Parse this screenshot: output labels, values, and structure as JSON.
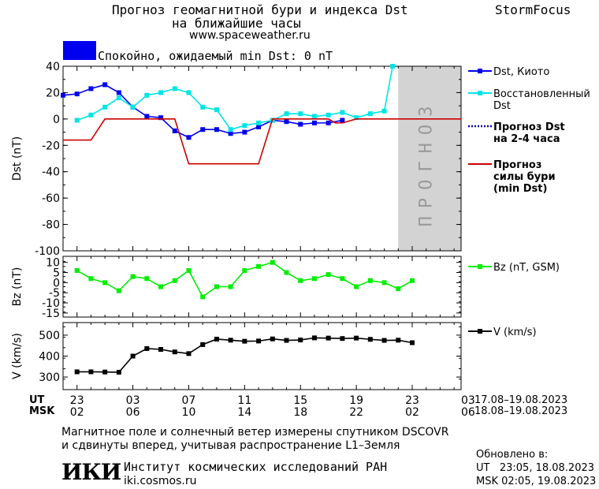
{
  "header": {
    "title_line1": "Прогноз геомагнитной бури и индекса Dst",
    "title_line2": "на ближайшие часы",
    "url": "www.spaceweather.ru",
    "brand": "StormFocus"
  },
  "status": {
    "text": "Спокойно, ожидаемый min Dst: 0 nT",
    "color": "#0000ee"
  },
  "forecast_label": "ПРОГНОЗ",
  "time_axis": {
    "ut_label": "UT",
    "msk_label": "MSK",
    "ut_ticks": [
      "23",
      "03",
      "07",
      "11",
      "15",
      "19",
      "23",
      "03"
    ],
    "msk_ticks": [
      "02",
      "06",
      "10",
      "14",
      "18",
      "22",
      "02",
      "06"
    ],
    "ut_range": "17.08–19.08.2023",
    "msk_range": "18.08–19.08.2023"
  },
  "footer": {
    "note_line1": "Магнитное поле и солнечный ветер измерены спутником DSCOVR",
    "note_line2": "и сдвинуты вперед, учитывая распространение L1–Земля",
    "institute": "Институт космических исследований РАН",
    "institute_url": "iki.cosmos.ru",
    "logo": "ИКИ",
    "updated_label": "Обновлено в:",
    "updated_ut": "UT   23:05, 18.08.2023",
    "updated_msk": "MSK 02:05, 19.08.2023"
  },
  "chart_data": [
    {
      "type": "line",
      "ylabel": "Dst (nT)",
      "ylim": [
        -100,
        40
      ],
      "yticks": [
        40,
        20,
        0,
        -20,
        -40,
        -60,
        -80,
        -100
      ],
      "xlim_hours": [
        -1,
        27.5
      ],
      "forecast_start_hour": 23,
      "series": [
        {
          "name": "Dst, Киото",
          "color": "#0000ee",
          "marker": "square",
          "x": [
            -1,
            0,
            1,
            2,
            3,
            4,
            5,
            6,
            7,
            8,
            9,
            10,
            11,
            12,
            13,
            14,
            15,
            16,
            17,
            18,
            19
          ],
          "values": [
            18,
            19,
            23,
            26,
            20,
            9,
            2,
            1,
            -9,
            -14,
            -8,
            -8,
            -11,
            -10,
            -6,
            -1,
            -2,
            -4,
            -3,
            -3,
            -1
          ]
        },
        {
          "name": "Восстановленный Dst",
          "color": "#00e5e5",
          "marker": "square",
          "x": [
            0,
            1,
            2,
            3,
            4,
            5,
            6,
            7,
            8,
            9,
            10,
            11,
            12,
            13,
            14,
            15,
            16,
            17,
            18,
            19,
            20,
            21,
            22,
            22.6
          ],
          "values": [
            -1,
            3,
            9,
            16,
            9,
            18,
            20,
            23,
            20,
            9,
            7,
            -8,
            -5,
            -3,
            -1,
            4,
            4,
            2,
            3,
            5,
            1,
            4,
            6,
            40
          ]
        },
        {
          "name": "Прогноз Dst на 2-4 часа",
          "color": "#0000aa",
          "marker": "none",
          "x": [],
          "values": []
        },
        {
          "name": "Прогноз силы бури (min Dst)",
          "color": "#cc0000",
          "marker": "none",
          "x": [
            -1,
            1,
            2,
            7,
            8,
            13,
            14,
            18,
            18.5,
            19,
            20,
            23,
            27.5
          ],
          "values": [
            -16,
            -16,
            0,
            0,
            -34,
            -34,
            0,
            0,
            -3,
            -3,
            0,
            0,
            0
          ]
        }
      ]
    },
    {
      "type": "line",
      "ylabel": "Bz (nT)",
      "ylim": [
        -17,
        13
      ],
      "yticks": [
        10,
        5,
        0,
        -5,
        -10,
        -15
      ],
      "series": [
        {
          "name": "Bz (nT, GSM)",
          "color": "#00ee00",
          "marker": "square",
          "x": [
            0,
            1,
            2,
            3,
            4,
            5,
            6,
            7,
            8,
            9,
            10,
            11,
            12,
            13,
            14,
            15,
            16,
            17,
            18,
            19,
            20,
            21,
            22,
            23,
            24
          ],
          "values": [
            6,
            2,
            0,
            -4,
            3,
            2,
            -2,
            1,
            6,
            -7,
            -2,
            -2,
            6,
            8,
            10,
            5,
            1,
            2,
            4,
            2,
            -2,
            1,
            0,
            -3,
            1
          ]
        }
      ]
    },
    {
      "type": "line",
      "ylabel": "V (km/s)",
      "ylim": [
        240,
        560
      ],
      "yticks": [
        500,
        400,
        300
      ],
      "series": [
        {
          "name": "V (km/s)",
          "color": "#000000",
          "marker": "square",
          "x": [
            0,
            1,
            2,
            3,
            4,
            5,
            6,
            7,
            8,
            9,
            10,
            11,
            12,
            13,
            14,
            15,
            16,
            17,
            18,
            19,
            20,
            21,
            22,
            23,
            24
          ],
          "values": [
            325,
            325,
            324,
            323,
            400,
            436,
            432,
            420,
            412,
            455,
            481,
            476,
            471,
            472,
            482,
            475,
            477,
            487,
            486,
            484,
            486,
            480,
            475,
            476,
            464
          ]
        }
      ]
    }
  ]
}
